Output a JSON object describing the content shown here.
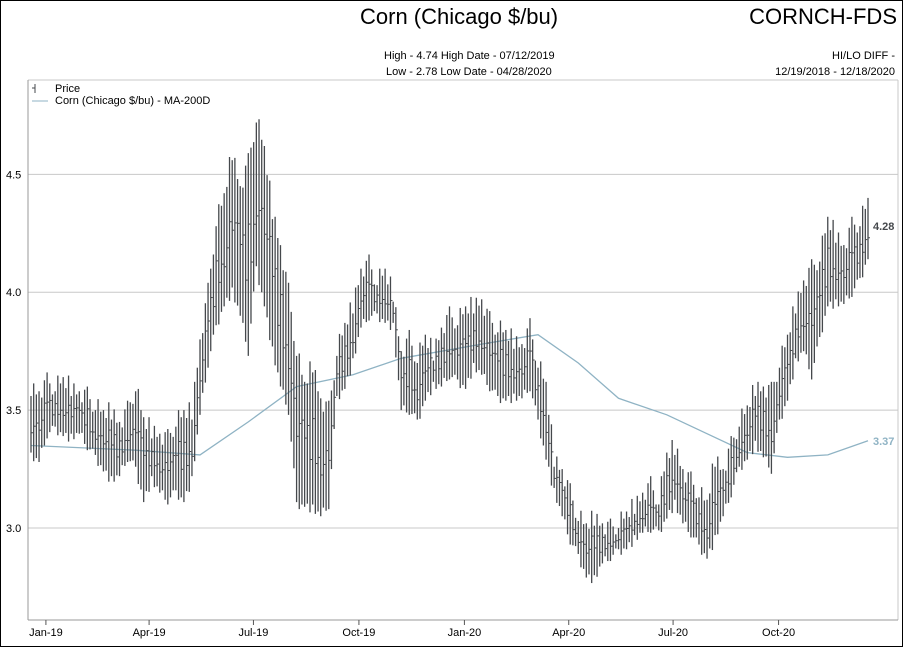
{
  "header": {
    "title": "Corn (Chicago $/bu)",
    "code": "CORNCH-FDS",
    "high_line": "High - 4.74 High Date - 07/12/2019",
    "low_line": "Low - 2.78 Low Date - 04/28/2020",
    "hilo_diff": "HI/LO DIFF -",
    "date_range": "12/19/2018 - 12/18/2020"
  },
  "chart_data": {
    "type": "bar",
    "subtype": "high-low price bars with moving average line",
    "title": "Corn (Chicago $/bu)",
    "legend": [
      "Price",
      "Corn (Chicago $/bu) - MA-200D"
    ],
    "legend_placement": "top-left",
    "ylim": [
      2.61,
      4.9
    ],
    "yticks": [
      "4.5",
      "4.0",
      "3.5",
      "3.0"
    ],
    "ytick_values": [
      4.5,
      4.0,
      3.5,
      3.0
    ],
    "xticks": [
      "Jan-19",
      "Apr-19",
      "Jul-19",
      "Oct-19",
      "Jan-20",
      "Apr-20",
      "Jul-20",
      "Oct-20"
    ],
    "xtick_dates": [
      "2019-01-01",
      "2019-04-01",
      "2019-07-01",
      "2019-10-01",
      "2020-01-01",
      "2020-04-01",
      "2020-07-01",
      "2020-10-01"
    ],
    "x_start": "2018-12-19",
    "x_end": "2020-12-18",
    "bar_interval": "weekly",
    "grid": true,
    "price_high": [
      3.6,
      3.58,
      3.62,
      3.6,
      3.62,
      3.6,
      3.58,
      3.56,
      3.52,
      3.48,
      3.5,
      3.45,
      3.5,
      3.6,
      3.45,
      3.42,
      3.4,
      3.38,
      3.45,
      3.48,
      3.5,
      3.8,
      4.0,
      4.3,
      4.4,
      4.6,
      4.45,
      4.55,
      4.74,
      4.6,
      4.35,
      4.2,
      4.0,
      3.75,
      3.6,
      3.7,
      3.55,
      3.5,
      3.75,
      3.85,
      3.95,
      4.1,
      4.12,
      4.05,
      4.08,
      4.0,
      3.75,
      3.8,
      3.72,
      3.8,
      3.75,
      3.85,
      3.9,
      3.88,
      3.92,
      3.95,
      3.97,
      3.88,
      3.85,
      3.82,
      3.8,
      3.78,
      3.85,
      3.7,
      3.6,
      3.3,
      3.25,
      3.15,
      3.05,
      3.0,
      3.05,
      3.02,
      3.0,
      3.02,
      3.05,
      3.1,
      3.15,
      3.18,
      3.12,
      3.3,
      3.35,
      3.25,
      3.2,
      3.15,
      3.1,
      3.3,
      3.25,
      3.35,
      3.45,
      3.5,
      3.6,
      3.6,
      3.58,
      3.7,
      3.8,
      3.95,
      4.05,
      4.1,
      4.15,
      4.3,
      4.25,
      4.2,
      4.28,
      4.3,
      4.38
    ],
    "price_low": [
      3.3,
      3.28,
      3.4,
      3.42,
      3.4,
      3.38,
      3.4,
      3.35,
      3.3,
      3.25,
      3.2,
      3.22,
      3.3,
      3.25,
      3.12,
      3.2,
      3.15,
      3.12,
      3.15,
      3.12,
      3.2,
      3.48,
      3.7,
      3.85,
      3.95,
      4.0,
      3.9,
      3.75,
      4.1,
      3.95,
      3.75,
      3.6,
      3.5,
      3.1,
      3.1,
      3.08,
      3.05,
      3.1,
      3.55,
      3.6,
      3.7,
      3.85,
      3.9,
      3.9,
      3.88,
      3.85,
      3.5,
      3.5,
      3.45,
      3.55,
      3.6,
      3.6,
      3.65,
      3.62,
      3.6,
      3.68,
      3.65,
      3.6,
      3.55,
      3.55,
      3.55,
      3.55,
      3.6,
      3.45,
      3.3,
      3.15,
      3.05,
      2.95,
      2.88,
      2.8,
      2.78,
      2.85,
      2.88,
      2.9,
      2.92,
      2.95,
      2.98,
      3.0,
      2.98,
      3.05,
      3.1,
      3.02,
      2.98,
      2.92,
      2.88,
      2.95,
      3.05,
      3.15,
      3.25,
      3.3,
      3.35,
      3.3,
      3.25,
      3.45,
      3.55,
      3.7,
      3.75,
      3.65,
      3.8,
      3.95,
      3.95,
      3.95,
      4.0,
      4.05,
      4.15
    ],
    "ma200_x_weeks": [
      0,
      13,
      21,
      27,
      33,
      40,
      46,
      56,
      63,
      68,
      73,
      79,
      84,
      89,
      94,
      99,
      104
    ],
    "ma200": [
      3.35,
      3.33,
      3.31,
      3.45,
      3.6,
      3.65,
      3.72,
      3.78,
      3.82,
      3.7,
      3.55,
      3.48,
      3.4,
      3.32,
      3.3,
      3.31,
      3.37
    ],
    "last_price_label": "4.28",
    "last_ma_label": "3.37",
    "colors": {
      "price": "#45484c",
      "ma": "#8fb3c4",
      "grid": "#c8c8c8"
    }
  }
}
